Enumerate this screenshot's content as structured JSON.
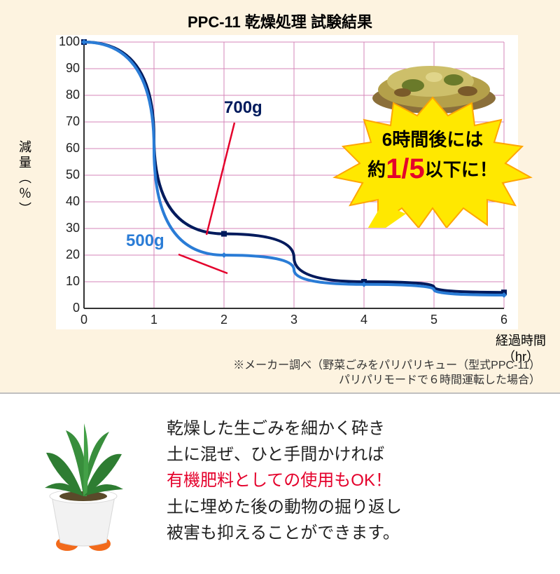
{
  "chart": {
    "title": "PPC-11 乾燥処理 試験結果",
    "title_fontsize": 22,
    "background_color": "#fdf3e0",
    "plot_background_color": "#ffffff",
    "ylabel": "減量（％）",
    "xlabel_line1": "経過時間",
    "xlabel_line2": "（hr）",
    "footnote_line1": "※メーカー調べ（野菜ごみをパリパリキュー（型式PPC-11）",
    "footnote_line2": "パリパリモードで６時間運転した場合）",
    "xlim": [
      0,
      6
    ],
    "ylim": [
      0,
      100
    ],
    "xtick_step": 1,
    "ytick_step": 10,
    "xticks": [
      0,
      1,
      2,
      3,
      4,
      5,
      6
    ],
    "yticks": [
      0,
      10,
      20,
      30,
      40,
      50,
      60,
      70,
      80,
      90,
      100
    ],
    "grid_color": "#d485b9",
    "axis_color": "#333333",
    "tick_font_color": "#222222",
    "tick_fontsize": 18,
    "series": [
      {
        "name": "700g",
        "label": "700g",
        "label_color": "#001a5c",
        "color": "#001a5c",
        "line_width": 4,
        "marker": "square",
        "marker_size": 8,
        "x": [
          0,
          2,
          4,
          6
        ],
        "y": [
          100,
          28,
          10,
          6
        ],
        "leader_color": "#e4002b"
      },
      {
        "name": "500g",
        "label": "500g",
        "label_color": "#2a7cd6",
        "color": "#2a7cd6",
        "line_width": 4,
        "marker": "diamond",
        "marker_size": 8,
        "x": [
          0,
          2,
          4,
          6
        ],
        "y": [
          100,
          20,
          9,
          5
        ],
        "leader_color": "#e4002b"
      }
    ],
    "callout": {
      "line1": "6時間後には",
      "line2_pre": "約",
      "line2_em": "1/5",
      "line2_post": "以下に！",
      "em_color": "#e4002b",
      "burst_fill": "#ffe800",
      "burst_stroke": "#ffa500"
    }
  },
  "lower": {
    "text_pre": "乾燥した生ごみを細かく砕き\n土に混ぜ、ひと手間かければ\n",
    "text_em": "有機肥料としての使用もOK！",
    "text_post": "\n土に埋めた後の動物の掘り返し\n被害も抑えることができます。",
    "em_color": "#e4002b",
    "body_color": "#222222",
    "body_fontsize": 24
  }
}
